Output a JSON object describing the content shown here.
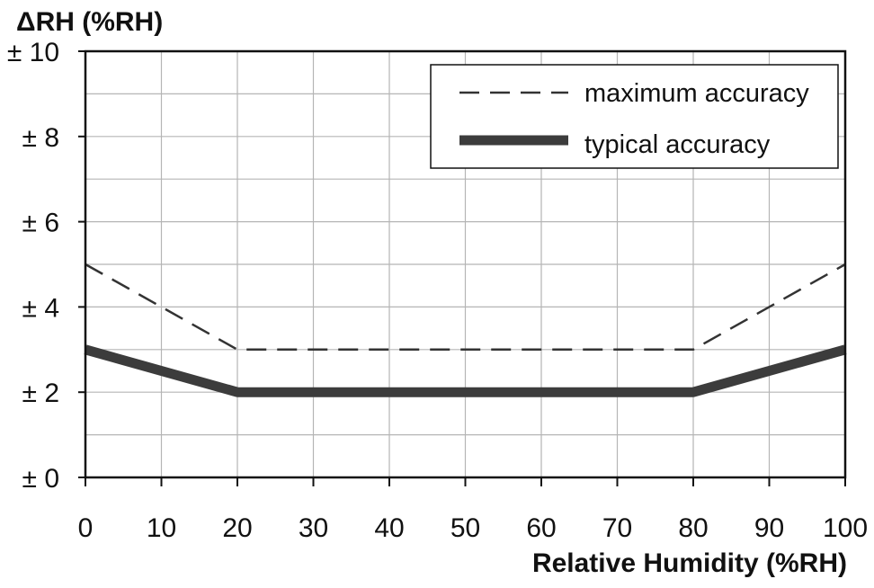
{
  "chart_data": {
    "type": "line",
    "title": "",
    "ylabel": "ΔRH (%RH)",
    "xlabel": "Relative Humidity (%RH)",
    "xlim": [
      0,
      100
    ],
    "ylim": [
      0,
      10
    ],
    "x_ticks": [
      0,
      10,
      20,
      30,
      40,
      50,
      60,
      70,
      80,
      90,
      100
    ],
    "x_tick_labels": [
      "0",
      "10",
      "20",
      "30",
      "40",
      "50",
      "60",
      "70",
      "80",
      "90",
      "100"
    ],
    "y_ticks": [
      0,
      2,
      4,
      6,
      8,
      10
    ],
    "y_tick_labels": [
      "± 0",
      "± 2",
      "± 4",
      "± 6",
      "± 8",
      "± 10"
    ],
    "grid": true,
    "legend_position": "top-right",
    "series": [
      {
        "name": "maximum accuracy",
        "style": "dashed",
        "color": "#333333",
        "x": [
          0,
          20,
          80,
          100
        ],
        "y": [
          5,
          3,
          3,
          5
        ]
      },
      {
        "name": "typical accuracy",
        "style": "thick-solid",
        "color": "#3c3c3c",
        "x": [
          0,
          20,
          80,
          100
        ],
        "y": [
          3,
          2,
          2,
          3
        ]
      }
    ]
  }
}
